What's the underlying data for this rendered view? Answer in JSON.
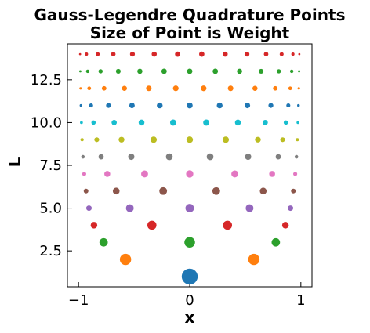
{
  "chart_data": {
    "type": "scatter",
    "title_line1": "Gauss-Legendre Quadrature Points",
    "title_line2": "Size of Point is Weight",
    "xlabel": "x",
    "ylabel": "L",
    "xlim": [
      -1.1,
      1.1
    ],
    "ylim": [
      0.4,
      14.6
    ],
    "xticks": [
      -1,
      0,
      1
    ],
    "xtick_labels": [
      "−1",
      "0",
      "1"
    ],
    "yticks": [
      2.5,
      5.0,
      7.5,
      10.0,
      12.5
    ],
    "ytick_labels": [
      "2.5",
      "5.0",
      "7.5",
      "10.0",
      "12.5"
    ],
    "grid": false,
    "series": [
      {
        "L": 1,
        "color": "#1f77b4",
        "points": [
          {
            "x": 0.0,
            "w": 2.0
          }
        ]
      },
      {
        "L": 2,
        "color": "#ff7f0e",
        "points": [
          {
            "x": -0.5774,
            "w": 1.0
          },
          {
            "x": 0.5774,
            "w": 1.0
          }
        ]
      },
      {
        "L": 3,
        "color": "#2ca02c",
        "points": [
          {
            "x": -0.7746,
            "w": 0.5556
          },
          {
            "x": 0.0,
            "w": 0.8889
          },
          {
            "x": 0.7746,
            "w": 0.5556
          }
        ]
      },
      {
        "L": 4,
        "color": "#d62728",
        "points": [
          {
            "x": -0.8611,
            "w": 0.3479
          },
          {
            "x": -0.34,
            "w": 0.6521
          },
          {
            "x": 0.34,
            "w": 0.6521
          },
          {
            "x": 0.8611,
            "w": 0.3479
          }
        ]
      },
      {
        "L": 5,
        "color": "#9467bd",
        "points": [
          {
            "x": -0.9062,
            "w": 0.2369
          },
          {
            "x": -0.5385,
            "w": 0.4786
          },
          {
            "x": 0.0,
            "w": 0.5689
          },
          {
            "x": 0.5385,
            "w": 0.4786
          },
          {
            "x": 0.9062,
            "w": 0.2369
          }
        ]
      },
      {
        "L": 6,
        "color": "#8c564b",
        "points": [
          {
            "x": -0.9325,
            "w": 0.1713
          },
          {
            "x": -0.6612,
            "w": 0.3608
          },
          {
            "x": -0.2386,
            "w": 0.4679
          },
          {
            "x": 0.2386,
            "w": 0.4679
          },
          {
            "x": 0.6612,
            "w": 0.3608
          },
          {
            "x": 0.9325,
            "w": 0.1713
          }
        ]
      },
      {
        "L": 7,
        "color": "#e377c2",
        "points": [
          {
            "x": -0.9491,
            "w": 0.1295
          },
          {
            "x": -0.7415,
            "w": 0.2797
          },
          {
            "x": -0.4058,
            "w": 0.3818
          },
          {
            "x": 0.0,
            "w": 0.418
          },
          {
            "x": 0.4058,
            "w": 0.3818
          },
          {
            "x": 0.7415,
            "w": 0.2797
          },
          {
            "x": 0.9491,
            "w": 0.1295
          }
        ]
      },
      {
        "L": 8,
        "color": "#7f7f7f",
        "points": [
          {
            "x": -0.9603,
            "w": 0.1012
          },
          {
            "x": -0.7967,
            "w": 0.2224
          },
          {
            "x": -0.5255,
            "w": 0.3137
          },
          {
            "x": -0.1834,
            "w": 0.3627
          },
          {
            "x": 0.1834,
            "w": 0.3627
          },
          {
            "x": 0.5255,
            "w": 0.3137
          },
          {
            "x": 0.7967,
            "w": 0.2224
          },
          {
            "x": 0.9603,
            "w": 0.1012
          }
        ]
      },
      {
        "L": 9,
        "color": "#bcbd22",
        "points": [
          {
            "x": -0.9682,
            "w": 0.0813
          },
          {
            "x": -0.8361,
            "w": 0.1806
          },
          {
            "x": -0.6134,
            "w": 0.2606
          },
          {
            "x": -0.3243,
            "w": 0.3123
          },
          {
            "x": 0.0,
            "w": 0.3302
          },
          {
            "x": 0.3243,
            "w": 0.3123
          },
          {
            "x": 0.6134,
            "w": 0.2606
          },
          {
            "x": 0.8361,
            "w": 0.1806
          },
          {
            "x": 0.9682,
            "w": 0.0813
          }
        ]
      },
      {
        "L": 10,
        "color": "#17becf",
        "points": [
          {
            "x": -0.9739,
            "w": 0.0667
          },
          {
            "x": -0.8651,
            "w": 0.1495
          },
          {
            "x": -0.6794,
            "w": 0.2191
          },
          {
            "x": -0.4334,
            "w": 0.2693
          },
          {
            "x": -0.1489,
            "w": 0.2955
          },
          {
            "x": 0.1489,
            "w": 0.2955
          },
          {
            "x": 0.4334,
            "w": 0.2693
          },
          {
            "x": 0.6794,
            "w": 0.2191
          },
          {
            "x": 0.8651,
            "w": 0.1495
          },
          {
            "x": 0.9739,
            "w": 0.0667
          }
        ]
      },
      {
        "L": 11,
        "color": "#1f77b4",
        "points": [
          {
            "x": -0.9782,
            "w": 0.0557
          },
          {
            "x": -0.8871,
            "w": 0.1256
          },
          {
            "x": -0.7302,
            "w": 0.1863
          },
          {
            "x": -0.5191,
            "w": 0.2332
          },
          {
            "x": -0.2695,
            "w": 0.2628
          },
          {
            "x": 0.0,
            "w": 0.2729
          },
          {
            "x": 0.2695,
            "w": 0.2628
          },
          {
            "x": 0.5191,
            "w": 0.2332
          },
          {
            "x": 0.7302,
            "w": 0.1863
          },
          {
            "x": 0.8871,
            "w": 0.1256
          },
          {
            "x": 0.9782,
            "w": 0.0557
          }
        ]
      },
      {
        "L": 12,
        "color": "#ff7f0e",
        "points": [
          {
            "x": -0.9816,
            "w": 0.0472
          },
          {
            "x": -0.9041,
            "w": 0.1069
          },
          {
            "x": -0.7699,
            "w": 0.1601
          },
          {
            "x": -0.5873,
            "w": 0.2032
          },
          {
            "x": -0.3678,
            "w": 0.2335
          },
          {
            "x": -0.1253,
            "w": 0.2491
          },
          {
            "x": 0.1253,
            "w": 0.2491
          },
          {
            "x": 0.3678,
            "w": 0.2335
          },
          {
            "x": 0.5873,
            "w": 0.2032
          },
          {
            "x": 0.7699,
            "w": 0.1601
          },
          {
            "x": 0.9041,
            "w": 0.1069
          },
          {
            "x": 0.9816,
            "w": 0.0472
          }
        ]
      },
      {
        "L": 13,
        "color": "#2ca02c",
        "points": [
          {
            "x": -0.9842,
            "w": 0.0405
          },
          {
            "x": -0.9176,
            "w": 0.0921
          },
          {
            "x": -0.8016,
            "w": 0.1388
          },
          {
            "x": -0.6423,
            "w": 0.1782
          },
          {
            "x": -0.4484,
            "w": 0.2078
          },
          {
            "x": -0.2304,
            "w": 0.2262
          },
          {
            "x": 0.0,
            "w": 0.2325
          },
          {
            "x": 0.2304,
            "w": 0.2262
          },
          {
            "x": 0.4484,
            "w": 0.2078
          },
          {
            "x": 0.6423,
            "w": 0.1782
          },
          {
            "x": 0.8016,
            "w": 0.1388
          },
          {
            "x": 0.9176,
            "w": 0.0921
          },
          {
            "x": 0.9842,
            "w": 0.0405
          }
        ]
      },
      {
        "L": 14,
        "color": "#d62728",
        "points": [
          {
            "x": -0.9862,
            "w": 0.0352
          },
          {
            "x": -0.9284,
            "w": 0.0801
          },
          {
            "x": -0.8272,
            "w": 0.1215
          },
          {
            "x": -0.6872,
            "w": 0.1573
          },
          {
            "x": -0.5152,
            "w": 0.1855
          },
          {
            "x": -0.3191,
            "w": 0.2043
          },
          {
            "x": -0.1085,
            "w": 0.2152
          },
          {
            "x": 0.1085,
            "w": 0.2152
          },
          {
            "x": 0.3191,
            "w": 0.2043
          },
          {
            "x": 0.5152,
            "w": 0.1855
          },
          {
            "x": 0.6872,
            "w": 0.1573
          },
          {
            "x": 0.8272,
            "w": 0.1215
          },
          {
            "x": 0.9284,
            "w": 0.0801
          },
          {
            "x": 0.9862,
            "w": 0.0352
          }
        ]
      }
    ]
  }
}
